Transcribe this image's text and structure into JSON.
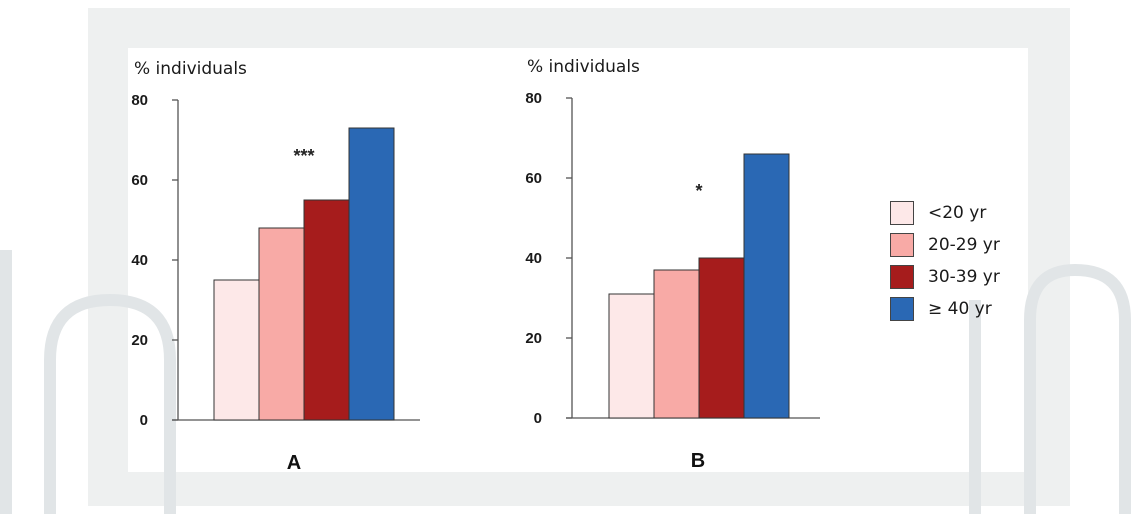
{
  "chart_data": [
    {
      "type": "bar",
      "title": "A",
      "ylabel": "% individuals",
      "ylim": [
        0,
        80
      ],
      "yticks": [
        "0",
        "20",
        "40",
        "60",
        "80"
      ],
      "categories": [
        "<20 yr",
        "20-29 yr",
        "30-39 yr",
        "≥ 40 yr"
      ],
      "values": [
        35,
        48,
        55,
        73
      ],
      "annotation": "***"
    },
    {
      "type": "bar",
      "title": "B",
      "ylabel": "% individuals",
      "ylim": [
        0,
        80
      ],
      "yticks": [
        "0",
        "20",
        "40",
        "60",
        "80"
      ],
      "categories": [
        "<20 yr",
        "20-29 yr",
        "30-39 yr",
        "≥ 40 yr"
      ],
      "values": [
        31,
        37,
        40,
        66
      ],
      "annotation": "*"
    }
  ],
  "legend": {
    "items": [
      {
        "label": "<20 yr",
        "color": "#fde8e8"
      },
      {
        "label": "20-29 yr",
        "color": "#f8aaa6"
      },
      {
        "label": "30-39 yr",
        "color": "#a61c1c"
      },
      {
        "label": "≥ 40 yr",
        "color": "#2a68b4"
      }
    ]
  }
}
